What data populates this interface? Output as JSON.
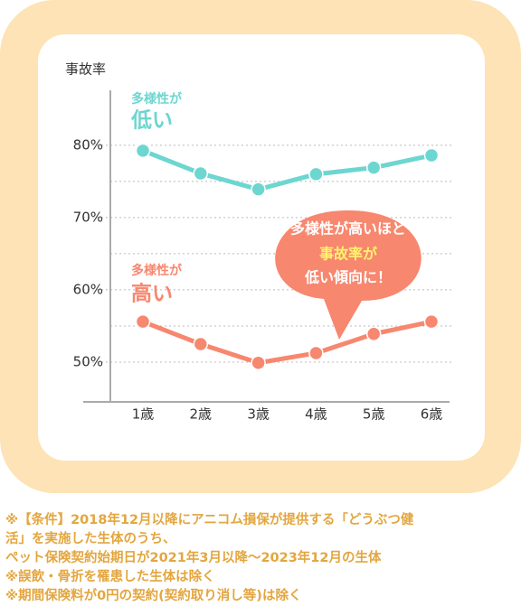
{
  "chart_data": {
    "type": "line",
    "y_label": "事故率",
    "categories": [
      "1歳",
      "2歳",
      "3歳",
      "4歳",
      "5歳",
      "6歳"
    ],
    "series": [
      {
        "label_top": "多様性が",
        "label_bottom": "低い",
        "color": "#6dd6d0",
        "values": [
          79.25,
          76.1,
          73.9,
          76.0,
          76.9,
          78.6
        ]
      },
      {
        "label_top": "多様性が",
        "label_bottom": "高い",
        "color": "#f7876f",
        "values": [
          55.6,
          52.5,
          49.9,
          51.25,
          53.9,
          55.6
        ]
      }
    ],
    "ylim": [
      44.5,
      87.6
    ],
    "yticks": [
      {
        "value": 80,
        "label": "80%"
      },
      {
        "value": 70,
        "label": "70%"
      },
      {
        "value": 60,
        "label": "60%"
      },
      {
        "value": 50,
        "label": "50%"
      }
    ],
    "minor_gridlines": [
      75,
      65,
      55
    ],
    "grid": true,
    "callout": {
      "line1": "多様性が高いほど",
      "line2": "事故率が",
      "line3": "低い傾向に！"
    }
  },
  "notes": [
    "※【条件】2018年12月以降にアニコム損保が提供する「どうぶつ健",
    "活」を実施した生体のうち、",
    "ペット保険契約始期日が2021年3月以降～2023年12月の生体",
    "※誤飲・骨折を罹患した生体は除く",
    "※期間保険料が0円の契約(契約取り消し等)は除く"
  ]
}
